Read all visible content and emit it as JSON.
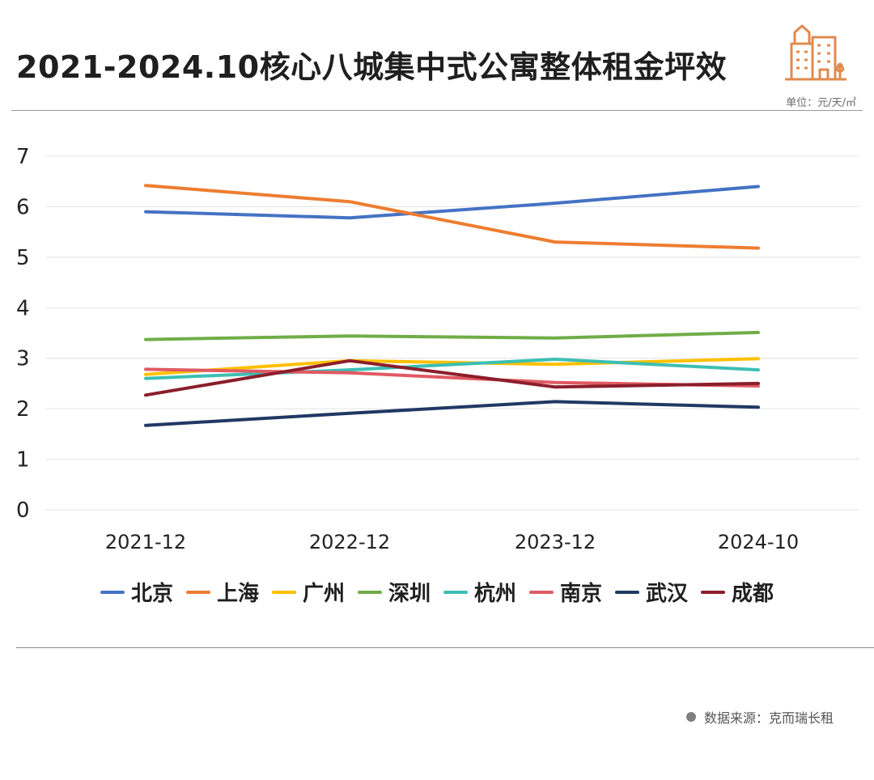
{
  "header": {
    "title": "2021-2024.10核心八城集中式公寓整体租金坪效",
    "unit": "单位：元/天/㎡"
  },
  "footer": {
    "source": "数据来源：克而瑞长租"
  },
  "colors": {
    "grid": "#e3e3e3",
    "logo": "#e08a4e"
  },
  "chart_data": {
    "type": "line",
    "title": "2021-2024.10核心八城集中式公寓整体租金坪效",
    "xlabel": "",
    "ylabel": "",
    "categories": [
      "2021-12",
      "2022-12",
      "2023-12",
      "2024-10"
    ],
    "ylim": [
      0,
      7
    ],
    "yticks": [
      0,
      1,
      2,
      3,
      4,
      5,
      6,
      7
    ],
    "grid": true,
    "legend_position": "bottom",
    "series": [
      {
        "name": "北京",
        "color": "#4472c4",
        "values": [
          5.9,
          5.78,
          6.07,
          6.4
        ]
      },
      {
        "name": "上海",
        "color": "#ed7d31",
        "values": [
          6.42,
          6.1,
          5.3,
          5.18
        ]
      },
      {
        "name": "广州",
        "color": "#ffc000",
        "values": [
          2.68,
          2.95,
          2.88,
          2.99
        ]
      },
      {
        "name": "深圳",
        "color": "#70ad47",
        "values": [
          3.37,
          3.44,
          3.4,
          3.51
        ]
      },
      {
        "name": "杭州",
        "color": "#3cbfb4",
        "values": [
          2.6,
          2.77,
          2.98,
          2.77
        ]
      },
      {
        "name": "南京",
        "color": "#e05a63",
        "values": [
          2.78,
          2.71,
          2.52,
          2.45
        ]
      },
      {
        "name": "武汉",
        "color": "#203864",
        "values": [
          1.67,
          1.91,
          2.14,
          2.03
        ]
      },
      {
        "name": "成都",
        "color": "#8b1e2b",
        "values": [
          2.27,
          2.95,
          2.43,
          2.5
        ]
      }
    ]
  }
}
